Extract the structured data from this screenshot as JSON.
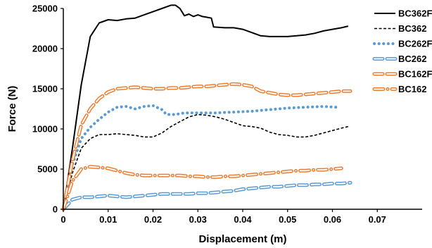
{
  "chart_data": {
    "type": "line",
    "title": "",
    "xlabel": "Displacement (m)",
    "ylabel": "Force (N)",
    "xlim": [
      0,
      0.08
    ],
    "ylim": [
      0,
      25000
    ],
    "x_ticks": [
      0,
      0.01,
      0.02,
      0.03,
      0.04,
      0.05,
      0.06,
      0.07
    ],
    "x_tick_labels": [
      "0",
      "0.01",
      "0.02",
      "0.03",
      "0.04",
      "0.05",
      "0.06",
      "0.07"
    ],
    "y_ticks": [
      0,
      5000,
      10000,
      15000,
      20000,
      25000
    ],
    "y_tick_labels": [
      "0",
      "5000",
      "10000",
      "15000",
      "20000",
      "25000"
    ],
    "grid": false,
    "legend_position": "right",
    "series": [
      {
        "name": "BC362F",
        "color": "#000000",
        "style": "solid",
        "points": [
          [
            0,
            0
          ],
          [
            0.002,
            7500
          ],
          [
            0.004,
            15500
          ],
          [
            0.006,
            21500
          ],
          [
            0.008,
            23200
          ],
          [
            0.01,
            23600
          ],
          [
            0.012,
            23500
          ],
          [
            0.014,
            23700
          ],
          [
            0.016,
            23800
          ],
          [
            0.018,
            24200
          ],
          [
            0.02,
            24600
          ],
          [
            0.022,
            25000
          ],
          [
            0.024,
            25400
          ],
          [
            0.025,
            25400
          ],
          [
            0.026,
            25000
          ],
          [
            0.027,
            24100
          ],
          [
            0.028,
            24300
          ],
          [
            0.029,
            24000
          ],
          [
            0.03,
            24200
          ],
          [
            0.031,
            24000
          ],
          [
            0.032,
            23900
          ],
          [
            0.033,
            23800
          ],
          [
            0.0335,
            22700
          ],
          [
            0.036,
            22600
          ],
          [
            0.038,
            22600
          ],
          [
            0.04,
            22400
          ],
          [
            0.042,
            22000
          ],
          [
            0.044,
            21600
          ],
          [
            0.046,
            21500
          ],
          [
            0.048,
            21500
          ],
          [
            0.05,
            21500
          ],
          [
            0.052,
            21600
          ],
          [
            0.054,
            21700
          ],
          [
            0.056,
            21900
          ],
          [
            0.058,
            22200
          ],
          [
            0.06,
            22400
          ],
          [
            0.062,
            22600
          ],
          [
            0.0635,
            22800
          ]
        ]
      },
      {
        "name": "BC362",
        "color": "#000000",
        "style": "dashed",
        "points": [
          [
            0,
            0
          ],
          [
            0.002,
            4500
          ],
          [
            0.004,
            7600
          ],
          [
            0.006,
            8800
          ],
          [
            0.008,
            9300
          ],
          [
            0.01,
            9300
          ],
          [
            0.012,
            9400
          ],
          [
            0.014,
            9300
          ],
          [
            0.016,
            9200
          ],
          [
            0.018,
            9000
          ],
          [
            0.02,
            9000
          ],
          [
            0.022,
            9500
          ],
          [
            0.024,
            10300
          ],
          [
            0.026,
            10900
          ],
          [
            0.028,
            11500
          ],
          [
            0.03,
            11800
          ],
          [
            0.032,
            11700
          ],
          [
            0.034,
            11500
          ],
          [
            0.036,
            11200
          ],
          [
            0.038,
            10800
          ],
          [
            0.04,
            10400
          ],
          [
            0.042,
            10300
          ],
          [
            0.044,
            10100
          ],
          [
            0.046,
            9600
          ],
          [
            0.048,
            9300
          ],
          [
            0.05,
            9200
          ],
          [
            0.052,
            9000
          ],
          [
            0.054,
            9000
          ],
          [
            0.056,
            9200
          ],
          [
            0.058,
            9500
          ],
          [
            0.06,
            9800
          ],
          [
            0.062,
            10100
          ],
          [
            0.0635,
            10300
          ]
        ]
      },
      {
        "name": "BC262F",
        "color": "#5b9bd5",
        "style": "dotted",
        "points": [
          [
            0,
            0
          ],
          [
            0.002,
            5500
          ],
          [
            0.004,
            8800
          ],
          [
            0.006,
            10200
          ],
          [
            0.008,
            11200
          ],
          [
            0.01,
            12100
          ],
          [
            0.012,
            12700
          ],
          [
            0.014,
            12800
          ],
          [
            0.016,
            12500
          ],
          [
            0.018,
            12800
          ],
          [
            0.02,
            12900
          ],
          [
            0.022,
            12400
          ],
          [
            0.023,
            11800
          ],
          [
            0.025,
            11800
          ],
          [
            0.027,
            12000
          ],
          [
            0.03,
            12000
          ],
          [
            0.034,
            12000
          ],
          [
            0.038,
            12100
          ],
          [
            0.042,
            12200
          ],
          [
            0.046,
            12400
          ],
          [
            0.05,
            12600
          ],
          [
            0.054,
            12700
          ],
          [
            0.058,
            12800
          ],
          [
            0.061,
            12700
          ]
        ]
      },
      {
        "name": "BC262",
        "color": "#5b9bd5",
        "style": "long-dash",
        "points": [
          [
            0,
            0
          ],
          [
            0.002,
            1200
          ],
          [
            0.004,
            1500
          ],
          [
            0.006,
            1500
          ],
          [
            0.008,
            1600
          ],
          [
            0.01,
            1700
          ],
          [
            0.012,
            1600
          ],
          [
            0.014,
            1500
          ],
          [
            0.016,
            1600
          ],
          [
            0.018,
            1700
          ],
          [
            0.02,
            1800
          ],
          [
            0.022,
            1900
          ],
          [
            0.024,
            1900
          ],
          [
            0.026,
            1900
          ],
          [
            0.028,
            1900
          ],
          [
            0.03,
            2000
          ],
          [
            0.032,
            2000
          ],
          [
            0.034,
            2100
          ],
          [
            0.036,
            2200
          ],
          [
            0.038,
            2300
          ],
          [
            0.04,
            2500
          ],
          [
            0.042,
            2600
          ],
          [
            0.044,
            2700
          ],
          [
            0.046,
            2800
          ],
          [
            0.048,
            2800
          ],
          [
            0.05,
            2900
          ],
          [
            0.052,
            3000
          ],
          [
            0.054,
            3000
          ],
          [
            0.056,
            3100
          ],
          [
            0.058,
            3100
          ],
          [
            0.06,
            3200
          ],
          [
            0.062,
            3200
          ],
          [
            0.064,
            3300
          ]
        ]
      },
      {
        "name": "BC162F",
        "color": "#ed7d31",
        "style": "long-dash",
        "points": [
          [
            0,
            0
          ],
          [
            0.002,
            6000
          ],
          [
            0.004,
            10500
          ],
          [
            0.006,
            12500
          ],
          [
            0.008,
            13800
          ],
          [
            0.01,
            14600
          ],
          [
            0.012,
            15000
          ],
          [
            0.014,
            15100
          ],
          [
            0.016,
            15200
          ],
          [
            0.018,
            15100
          ],
          [
            0.02,
            15000
          ],
          [
            0.022,
            15000
          ],
          [
            0.024,
            15100
          ],
          [
            0.026,
            15100
          ],
          [
            0.028,
            15200
          ],
          [
            0.03,
            15300
          ],
          [
            0.032,
            15300
          ],
          [
            0.034,
            15400
          ],
          [
            0.036,
            15500
          ],
          [
            0.038,
            15600
          ],
          [
            0.04,
            15500
          ],
          [
            0.042,
            15300
          ],
          [
            0.044,
            14700
          ],
          [
            0.046,
            14500
          ],
          [
            0.048,
            14300
          ],
          [
            0.05,
            14200
          ],
          [
            0.052,
            14200
          ],
          [
            0.054,
            14300
          ],
          [
            0.056,
            14400
          ],
          [
            0.058,
            14500
          ],
          [
            0.06,
            14600
          ],
          [
            0.062,
            14700
          ],
          [
            0.064,
            14700
          ]
        ]
      },
      {
        "name": "BC162",
        "color": "#ed7d31",
        "style": "dash-dot",
        "points": [
          [
            0,
            0
          ],
          [
            0.002,
            3500
          ],
          [
            0.004,
            5000
          ],
          [
            0.006,
            5300
          ],
          [
            0.008,
            5200
          ],
          [
            0.01,
            5100
          ],
          [
            0.012,
            4800
          ],
          [
            0.014,
            4500
          ],
          [
            0.016,
            4300
          ],
          [
            0.018,
            4200
          ],
          [
            0.02,
            4200
          ],
          [
            0.022,
            4200
          ],
          [
            0.024,
            4200
          ],
          [
            0.026,
            4200
          ],
          [
            0.028,
            4100
          ],
          [
            0.03,
            4100
          ],
          [
            0.032,
            4000
          ],
          [
            0.034,
            4000
          ],
          [
            0.036,
            4100
          ],
          [
            0.038,
            4100
          ],
          [
            0.04,
            4200
          ],
          [
            0.042,
            4300
          ],
          [
            0.044,
            4400
          ],
          [
            0.046,
            4500
          ],
          [
            0.048,
            4600
          ],
          [
            0.05,
            4700
          ],
          [
            0.052,
            4800
          ],
          [
            0.054,
            4800
          ],
          [
            0.056,
            4900
          ],
          [
            0.058,
            4900
          ],
          [
            0.06,
            5000
          ],
          [
            0.062,
            5100
          ]
        ]
      }
    ]
  }
}
